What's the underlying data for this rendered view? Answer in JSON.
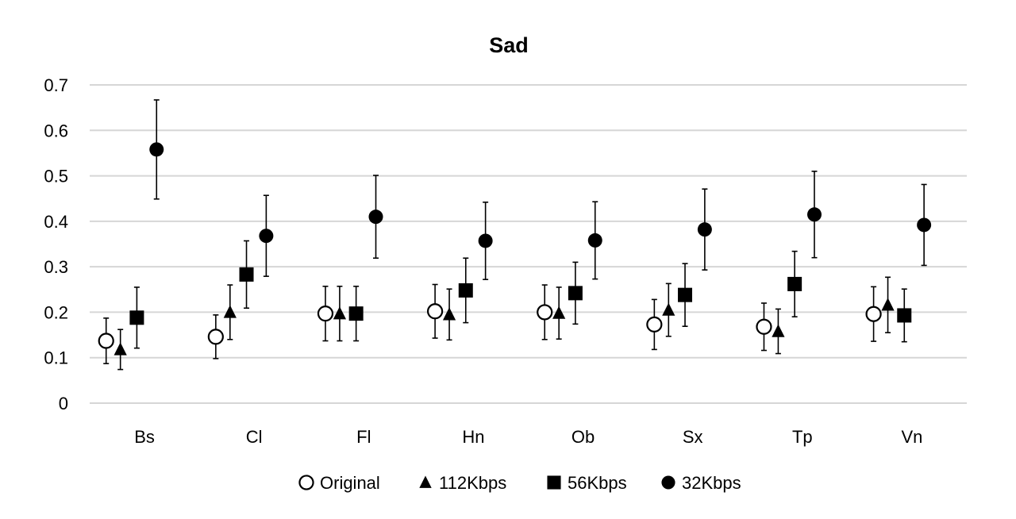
{
  "chart_data": {
    "type": "scatter",
    "title": "Sad",
    "xlabel": "",
    "ylabel": "",
    "categories": [
      "Bs",
      "Cl",
      "Fl",
      "Hn",
      "Ob",
      "Sx",
      "Tp",
      "Vn"
    ],
    "ylim": [
      0,
      0.7
    ],
    "yticks": [
      "0",
      "0.1",
      "0.2",
      "0.3",
      "0.4",
      "0.5",
      "0.6",
      "0.7"
    ],
    "grid": true,
    "legend_position": "bottom",
    "series": [
      {
        "name": "Original",
        "marker": "open-circle",
        "values": [
          0.137,
          0.146,
          0.197,
          0.202,
          0.2,
          0.173,
          0.168,
          0.196
        ],
        "errors": [
          0.05,
          0.048,
          0.06,
          0.059,
          0.06,
          0.055,
          0.052,
          0.06
        ]
      },
      {
        "name": "112Kbps",
        "marker": "triangle",
        "values": [
          0.118,
          0.2,
          0.197,
          0.195,
          0.198,
          0.205,
          0.158,
          0.216
        ],
        "errors": [
          0.044,
          0.06,
          0.06,
          0.056,
          0.057,
          0.058,
          0.049,
          0.061
        ]
      },
      {
        "name": "56Kbps",
        "marker": "square",
        "values": [
          0.188,
          0.283,
          0.197,
          0.248,
          0.242,
          0.238,
          0.262,
          0.193
        ],
        "errors": [
          0.067,
          0.074,
          0.06,
          0.071,
          0.068,
          0.069,
          0.072,
          0.058
        ]
      },
      {
        "name": "32Kbps",
        "marker": "filled-circle",
        "values": [
          0.558,
          0.368,
          0.41,
          0.357,
          0.358,
          0.382,
          0.415,
          0.392
        ],
        "errors": [
          0.109,
          0.089,
          0.091,
          0.085,
          0.085,
          0.089,
          0.095,
          0.089
        ]
      }
    ]
  }
}
